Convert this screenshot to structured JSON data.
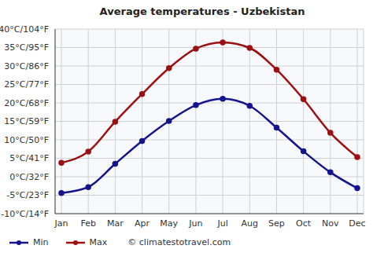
{
  "chart_data": {
    "type": "line",
    "title": "Average temperatures - Uzbekistan",
    "categories": [
      "Jan",
      "Feb",
      "Mar",
      "Apr",
      "May",
      "Jun",
      "Jul",
      "Aug",
      "Sep",
      "Oct",
      "Nov",
      "Dec"
    ],
    "series": [
      {
        "name": "Min",
        "color": "#14148c",
        "marker": "circle",
        "values": [
          -4.4,
          -2.8,
          3.5,
          9.7,
          15.1,
          19.4,
          21.1,
          19.2,
          13.3,
          6.9,
          1.2,
          -3.1
        ]
      },
      {
        "name": "Max",
        "color": "#9b1010",
        "marker": "circle",
        "values": [
          3.8,
          6.8,
          14.9,
          22.4,
          29.4,
          34.7,
          36.4,
          34.9,
          29.0,
          21.0,
          11.9,
          5.3
        ]
      }
    ],
    "ylim": [
      -10,
      40
    ],
    "yticks": [
      {
        "value": -10,
        "label": "-10°C/14°F"
      },
      {
        "value": -5,
        "label": "-5°C/23°F"
      },
      {
        "value": 0,
        "label": "0°C/32°F"
      },
      {
        "value": 5,
        "label": "5°C/41°F"
      },
      {
        "value": 10,
        "label": "10°C/50°F"
      },
      {
        "value": 15,
        "label": "15°C/59°F"
      },
      {
        "value": 20,
        "label": "20°C/68°F"
      },
      {
        "value": 25,
        "label": "25°C/77°F"
      },
      {
        "value": 30,
        "label": "30°C/86°F"
      },
      {
        "value": 35,
        "label": "35°C/95°F"
      },
      {
        "value": 40,
        "label": "40°C/104°F"
      }
    ],
    "grid": true,
    "legend": "bottom left",
    "annotation": "© climatestotravel.com"
  }
}
